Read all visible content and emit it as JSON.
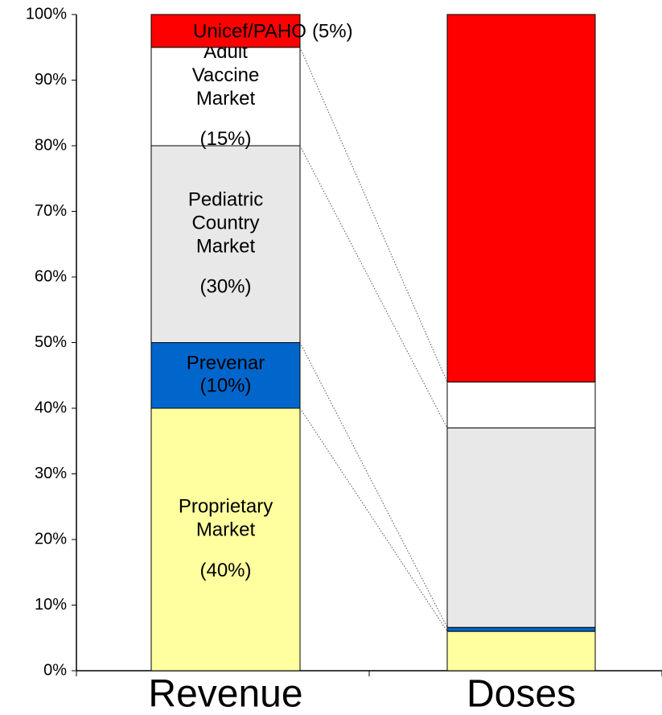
{
  "chart_data": {
    "type": "stacked_bar",
    "categories": [
      "Revenue",
      "Doses"
    ],
    "series": [
      {
        "name": "Proprietary Market",
        "color": "#ffffa0",
        "label_color": "#000000",
        "values": [
          40,
          6.0
        ],
        "value_labels": [
          "(40%)",
          null
        ]
      },
      {
        "name": "Prevenar",
        "color": "#0066cc",
        "label_color": "#ffffff",
        "values": [
          10,
          0.6
        ],
        "value_labels": [
          "(10%)",
          null
        ]
      },
      {
        "name": "Pediatric Country Market",
        "color": "#e8e8e8",
        "label_color": "#000000",
        "values": [
          30,
          30.4
        ],
        "value_labels": [
          "(30%)",
          null
        ]
      },
      {
        "name": "Adult Vaccine Market",
        "color": "#ffffff",
        "label_color": "#000000",
        "values": [
          15,
          7.0
        ],
        "value_labels": [
          "(15%)",
          null
        ]
      },
      {
        "name": "Unicef/PAHO",
        "color": "#ff0000",
        "label_color": "#7a0000",
        "values": [
          5,
          56.0
        ],
        "value_labels": [
          "(5%)",
          null
        ]
      }
    ],
    "ylim": [
      0,
      100
    ],
    "yticks": [
      {
        "value": 0,
        "label": "0%"
      },
      {
        "value": 10,
        "label": "10%"
      },
      {
        "value": 20,
        "label": "20%"
      },
      {
        "value": 30,
        "label": "30%"
      },
      {
        "value": 40,
        "label": "40%"
      },
      {
        "value": 50,
        "label": "50%"
      },
      {
        "value": 60,
        "label": "60%"
      },
      {
        "value": 70,
        "label": "70%"
      },
      {
        "value": 80,
        "label": "80%"
      },
      {
        "value": 90,
        "label": "90%"
      },
      {
        "value": 100,
        "label": "100%"
      }
    ],
    "connectors": true
  }
}
